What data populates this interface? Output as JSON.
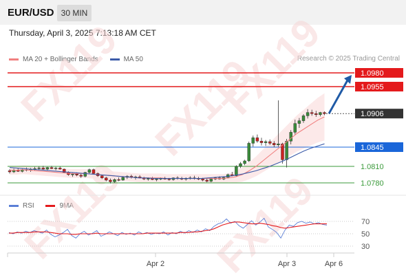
{
  "header": {
    "symbol": "EUR/USD",
    "timeframe": "30 MIN"
  },
  "datetime": "Thursday, April 3, 2025 7:13:18 AM CET",
  "legend": [
    {
      "label": "MA 20 + Bollinger Bands",
      "color": "#f08080"
    },
    {
      "label": "MA 50",
      "color": "#3b5ba9"
    }
  ],
  "research_credit": "Research © 2025 Trading Central",
  "watermark": "FX119",
  "price_levels": [
    {
      "value": "1.0980",
      "type": "resistance",
      "color": "#e41a1c"
    },
    {
      "value": "1.0955",
      "type": "resistance",
      "color": "#e41a1c"
    },
    {
      "value": "1.0906",
      "type": "last",
      "color": "#333333"
    },
    {
      "value": "1.0845",
      "type": "pivot",
      "color": "#1a66d9"
    },
    {
      "value": "1.0810",
      "type": "support",
      "color": "#3a9a3a"
    },
    {
      "value": "1.0780",
      "type": "support",
      "color": "#3a9a3a"
    }
  ],
  "rsi_legend": [
    {
      "label": "RSI",
      "color": "#5b7fd6"
    },
    {
      "label": "9MA",
      "color": "#e41a1c"
    }
  ],
  "rsi_axis": [
    "70",
    "50",
    "30"
  ],
  "x_axis": [
    "Apr 2",
    "Apr 3",
    "Apr 6"
  ],
  "chart_data": [
    {
      "type": "candlestick",
      "title": "EUR/USD 30 MIN",
      "ylim": [
        1.076,
        1.099
      ],
      "candles": [
        [
          1.0802,
          1.0805,
          1.0797,
          1.08
        ],
        [
          1.08,
          1.0806,
          1.0798,
          1.0803
        ],
        [
          1.0803,
          1.0807,
          1.08,
          1.0801
        ],
        [
          1.0801,
          1.0806,
          1.0799,
          1.0804
        ],
        [
          1.0804,
          1.0808,
          1.0801,
          1.0803
        ],
        [
          1.0803,
          1.0807,
          1.08,
          1.0805
        ],
        [
          1.0805,
          1.0809,
          1.0802,
          1.0806
        ],
        [
          1.0806,
          1.081,
          1.0803,
          1.0807
        ],
        [
          1.0807,
          1.0811,
          1.0804,
          1.0805
        ],
        [
          1.0805,
          1.0809,
          1.0802,
          1.0808
        ],
        [
          1.0808,
          1.0811,
          1.0805,
          1.0806
        ],
        [
          1.0806,
          1.0809,
          1.0803,
          1.0807
        ],
        [
          1.0807,
          1.081,
          1.0804,
          1.0805
        ],
        [
          1.0805,
          1.0806,
          1.0798,
          1.0799
        ],
        [
          1.0799,
          1.0801,
          1.0793,
          1.0795
        ],
        [
          1.0795,
          1.0798,
          1.0791,
          1.0796
        ],
        [
          1.0796,
          1.0799,
          1.0792,
          1.0794
        ],
        [
          1.0794,
          1.0797,
          1.0789,
          1.0792
        ],
        [
          1.0792,
          1.08,
          1.079,
          1.0799
        ],
        [
          1.0799,
          1.0806,
          1.0797,
          1.0804
        ],
        [
          1.0804,
          1.0806,
          1.0795,
          1.0797
        ],
        [
          1.0797,
          1.0799,
          1.0791,
          1.0793
        ],
        [
          1.0793,
          1.0795,
          1.0787,
          1.0789
        ],
        [
          1.0789,
          1.0791,
          1.0783,
          1.0785
        ],
        [
          1.0785,
          1.0788,
          1.0779,
          1.0782
        ],
        [
          1.0782,
          1.0788,
          1.078,
          1.0786
        ],
        [
          1.0786,
          1.079,
          1.0783,
          1.0785
        ],
        [
          1.0785,
          1.0792,
          1.0784,
          1.079
        ],
        [
          1.079,
          1.0794,
          1.0787,
          1.0792
        ],
        [
          1.0792,
          1.0795,
          1.0788,
          1.079
        ],
        [
          1.079,
          1.0793,
          1.0786,
          1.0791
        ],
        [
          1.0791,
          1.0794,
          1.0788,
          1.0789
        ],
        [
          1.0789,
          1.0791,
          1.0785,
          1.0787
        ],
        [
          1.0787,
          1.079,
          1.0784,
          1.0788
        ],
        [
          1.0788,
          1.0791,
          1.0785,
          1.0786
        ],
        [
          1.0786,
          1.0789,
          1.0783,
          1.0787
        ],
        [
          1.0787,
          1.079,
          1.0785,
          1.0788
        ],
        [
          1.0788,
          1.0791,
          1.0786,
          1.0787
        ],
        [
          1.0787,
          1.0789,
          1.0784,
          1.0786
        ],
        [
          1.0786,
          1.079,
          1.0784,
          1.0789
        ],
        [
          1.0789,
          1.0792,
          1.0786,
          1.0788
        ],
        [
          1.0788,
          1.0791,
          1.0785,
          1.0787
        ],
        [
          1.0787,
          1.079,
          1.0784,
          1.0788
        ],
        [
          1.0788,
          1.0792,
          1.0786,
          1.0789
        ],
        [
          1.0789,
          1.0793,
          1.0786,
          1.0788
        ],
        [
          1.0788,
          1.0791,
          1.0785,
          1.0787
        ],
        [
          1.0787,
          1.0789,
          1.0783,
          1.0785
        ],
        [
          1.0785,
          1.0788,
          1.0781,
          1.0783
        ],
        [
          1.0783,
          1.0789,
          1.0781,
          1.0787
        ],
        [
          1.0787,
          1.0791,
          1.0785,
          1.0789
        ],
        [
          1.0789,
          1.0792,
          1.0786,
          1.0787
        ],
        [
          1.0787,
          1.0791,
          1.0785,
          1.079
        ],
        [
          1.079,
          1.0797,
          1.0788,
          1.0795
        ],
        [
          1.0795,
          1.08,
          1.0792,
          1.0793
        ],
        [
          1.0793,
          1.0812,
          1.0791,
          1.081
        ],
        [
          1.081,
          1.0818,
          1.0807,
          1.0815
        ],
        [
          1.0815,
          1.0822,
          1.0812,
          1.082
        ],
        [
          1.082,
          1.0855,
          1.0818,
          1.0852
        ],
        [
          1.0852,
          1.0866,
          1.0846,
          1.0862
        ],
        [
          1.0862,
          1.0868,
          1.0853,
          1.0856
        ],
        [
          1.0856,
          1.0862,
          1.0848,
          1.0853
        ],
        [
          1.0853,
          1.0858,
          1.0847,
          1.0855
        ],
        [
          1.0855,
          1.0859,
          1.0849,
          1.0852
        ],
        [
          1.0852,
          1.0856,
          1.0845,
          1.0849
        ],
        [
          1.0849,
          1.093,
          1.0846,
          1.0851
        ],
        [
          1.0851,
          1.0853,
          1.0815,
          1.0822
        ],
        [
          1.0822,
          1.086,
          1.0808,
          1.0856
        ],
        [
          1.0856,
          1.0876,
          1.085,
          1.0872
        ],
        [
          1.0872,
          1.0895,
          1.0868,
          1.0888
        ],
        [
          1.0888,
          1.0898,
          1.088,
          1.0893
        ],
        [
          1.0893,
          1.0905,
          1.0889,
          1.0902
        ],
        [
          1.0902,
          1.0914,
          1.0897,
          1.0908
        ],
        [
          1.0908,
          1.0913,
          1.0902,
          1.0906
        ],
        [
          1.0906,
          1.0911,
          1.09,
          1.0904
        ],
        [
          1.0904,
          1.0909,
          1.0901,
          1.0908
        ],
        [
          1.0908,
          1.091,
          1.0903,
          1.0906
        ]
      ],
      "ma20": [
        1.0803,
        1.0803,
        1.0804,
        1.0803,
        1.0802,
        1.0801,
        1.08,
        1.0799,
        1.0798,
        1.0797,
        1.0797,
        1.0797,
        1.0796,
        1.0795,
        1.0794,
        1.0793,
        1.0792,
        1.0791,
        1.079,
        1.0789,
        1.0789,
        1.0789,
        1.0789,
        1.0788,
        1.0788,
        1.0788,
        1.0788,
        1.0788,
        1.0788,
        1.0788,
        1.0788,
        1.0788,
        1.0789,
        1.0791,
        1.0795,
        1.0802,
        1.081,
        1.082,
        1.083,
        1.084,
        1.085,
        1.086,
        1.087,
        1.0878,
        1.0886,
        1.0894,
        1.09
      ],
      "ma50": [
        1.0808,
        1.0807,
        1.0806,
        1.0805,
        1.0804,
        1.0803,
        1.0802,
        1.0801,
        1.08,
        1.0799,
        1.0798,
        1.0797,
        1.0796,
        1.0795,
        1.0794,
        1.0793,
        1.0792,
        1.0791,
        1.079,
        1.0789,
        1.0789,
        1.0788,
        1.0788,
        1.0788,
        1.0788,
        1.0788,
        1.0788,
        1.0788,
        1.0788,
        1.0789,
        1.079,
        1.0791,
        1.0792,
        1.0794,
        1.0796,
        1.0799,
        1.0802,
        1.0806,
        1.081,
        1.0815,
        1.082,
        1.0826,
        1.0832,
        1.0838,
        1.0843,
        1.0847,
        1.0851
      ],
      "projection": {
        "from": 1.0906,
        "to": 1.098
      }
    },
    {
      "type": "line",
      "title": "RSI",
      "ylim": [
        20,
        80
      ],
      "series": [
        {
          "name": "RSI",
          "values": [
            52,
            50,
            53,
            51,
            54,
            52,
            55,
            53,
            51,
            56,
            49,
            45,
            48,
            52,
            57,
            47,
            43,
            50,
            54,
            48,
            51,
            55,
            46,
            49,
            53,
            50,
            47,
            52,
            49,
            51,
            48,
            53,
            50,
            52,
            49,
            51,
            50,
            53,
            48,
            52,
            50,
            54,
            51,
            55,
            52,
            56,
            53,
            58,
            55,
            62,
            66,
            68,
            74,
            67,
            70,
            63,
            59,
            65,
            71,
            64,
            69,
            75,
            61,
            57,
            52,
            43,
            56,
            64,
            62,
            68,
            70,
            67,
            69,
            66,
            68,
            65,
            64
          ]
        },
        {
          "name": "9MA",
          "values": [
            51,
            51,
            52,
            52,
            52,
            52,
            53,
            53,
            53,
            53,
            52,
            51,
            50,
            50,
            50,
            49,
            49,
            50,
            50,
            50,
            50,
            51,
            50,
            50,
            50,
            50,
            50,
            50,
            50,
            50,
            50,
            50,
            50,
            51,
            51,
            51,
            51,
            51,
            51,
            51,
            51,
            52,
            52,
            52,
            53,
            53,
            54,
            55,
            56,
            58,
            61,
            64,
            66,
            68,
            69,
            69,
            68,
            67,
            66,
            66,
            67,
            66,
            65,
            63,
            62,
            60,
            59,
            60,
            61,
            62,
            63,
            64,
            65,
            66,
            66,
            66,
            66
          ]
        }
      ]
    }
  ]
}
